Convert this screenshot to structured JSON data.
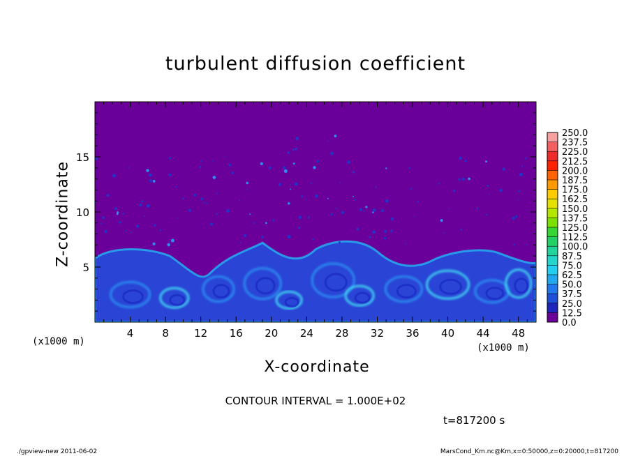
{
  "chart_data": {
    "type": "heatmap",
    "title": "turbulent diffusion coefficient",
    "xlabel": "X-coordinate",
    "ylabel": "Z-coordinate",
    "x_unit": "(x1000 m)",
    "xlim": [
      0,
      50
    ],
    "ylim": [
      0,
      20
    ],
    "x_ticks": [
      4,
      8,
      12,
      16,
      20,
      24,
      28,
      32,
      36,
      40,
      44,
      48
    ],
    "y_ticks": [
      5,
      10,
      15
    ],
    "colorbar": {
      "levels": [
        "250.0",
        "237.5",
        "225.0",
        "212.5",
        "200.0",
        "187.5",
        "175.0",
        "162.5",
        "150.0",
        "137.5",
        "125.0",
        "112.5",
        "100.0",
        "87.5",
        "75.0",
        "62.5",
        "50.0",
        "37.5",
        "25.0",
        "12.5",
        "0.0"
      ],
      "colors": [
        "#f7a0a0",
        "#f55f5f",
        "#ef2a2a",
        "#ff2200",
        "#ff6200",
        "#ff9900",
        "#ffcc00",
        "#e6e000",
        "#b4e600",
        "#7ce000",
        "#33d633",
        "#22d066",
        "#22d39c",
        "#22d6cc",
        "#22cfee",
        "#22a8ee",
        "#2277ee",
        "#1e4fd8",
        "#1c26bd",
        "#6a0099"
      ]
    },
    "background_color": "#6a0099",
    "turbulent_layer_top_km": 7.5
  },
  "labels": {
    "contour_interval": "CONTOUR INTERVAL = 1.000E+02",
    "time": "t=817200 s",
    "footer_left": "./gpview-new   2011-06-02",
    "footer_right": "MarsCond_Km.nc@Km,x=0:50000,z=0:20000,t=817200"
  }
}
